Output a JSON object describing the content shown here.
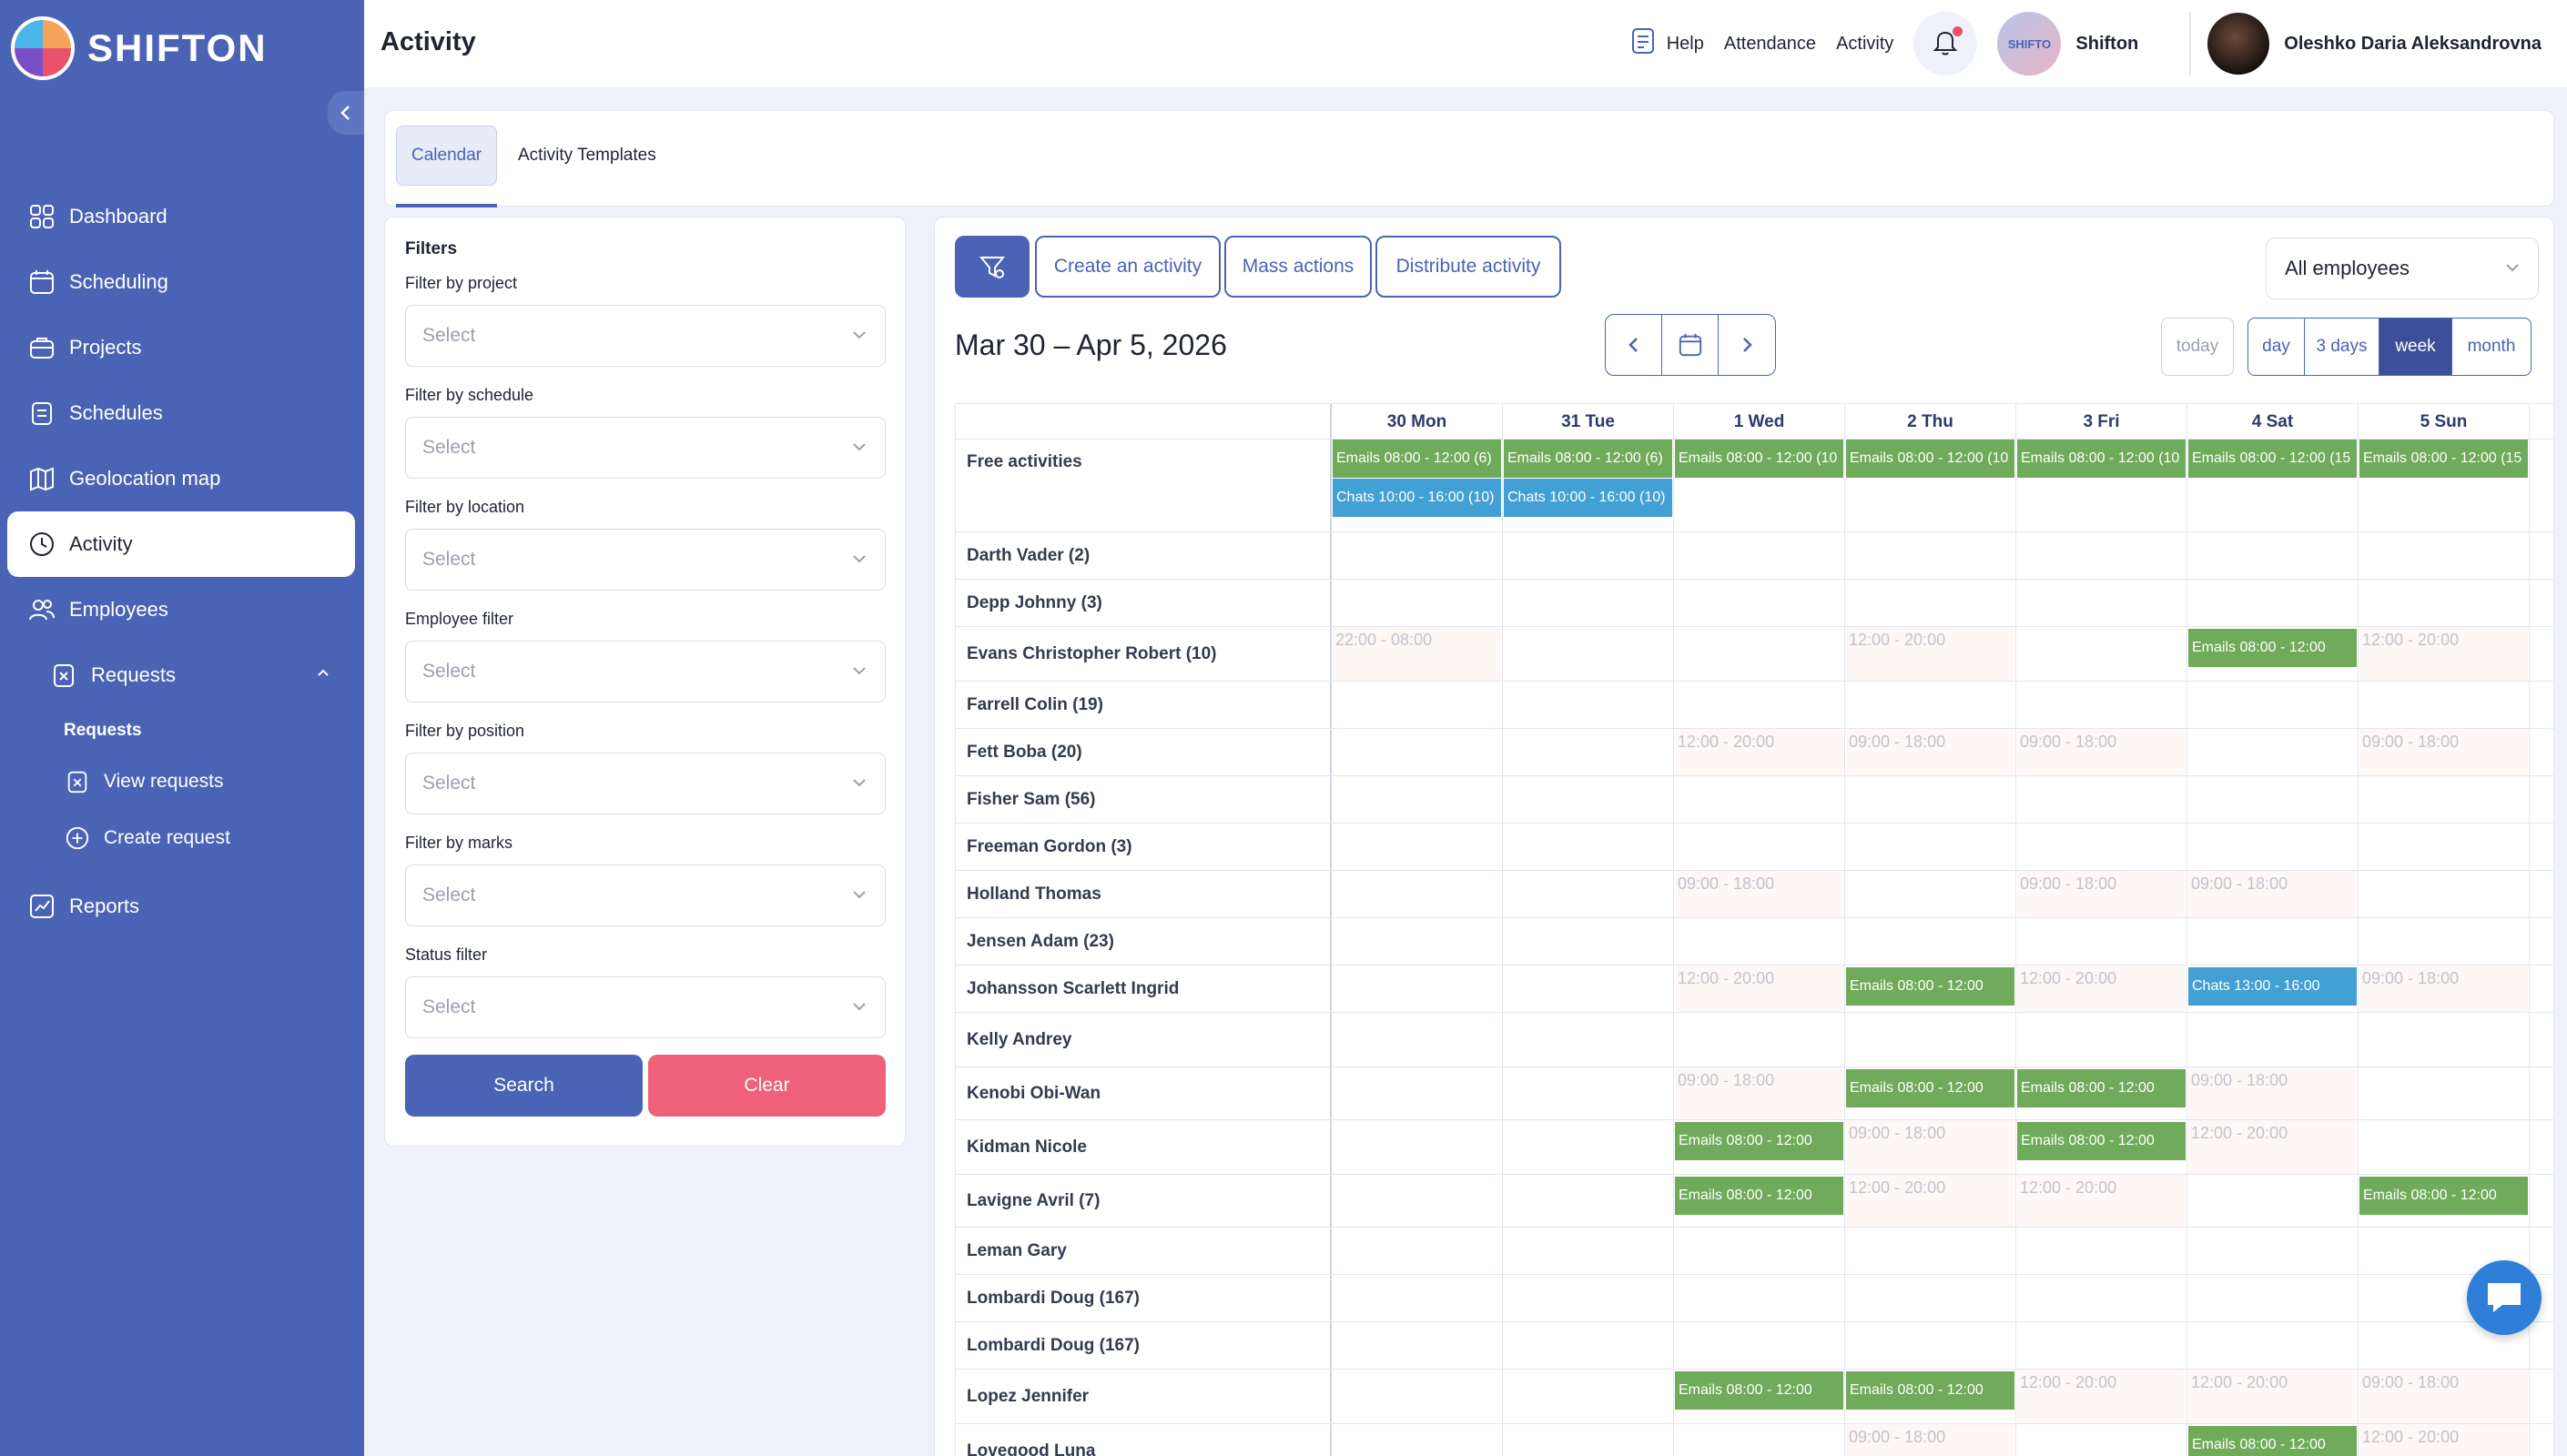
{
  "app": {
    "name": "SHIFTON",
    "page_title": "Activity"
  },
  "sidebar": {
    "items": [
      {
        "label": "Dashboard",
        "icon": "dashboard-icon"
      },
      {
        "label": "Scheduling",
        "icon": "calendar-icon"
      },
      {
        "label": "Projects",
        "icon": "briefcase-icon"
      },
      {
        "label": "Schedules",
        "icon": "clipboard-icon"
      },
      {
        "label": "Geolocation map",
        "icon": "map-icon"
      },
      {
        "label": "Activity",
        "icon": "clock-icon",
        "active": true
      },
      {
        "label": "Employees",
        "icon": "users-icon"
      }
    ],
    "requests": {
      "label": "Requests",
      "sub_heading": "Requests",
      "view": "View requests",
      "create": "Create request"
    },
    "reports": "Reports"
  },
  "topbar": {
    "help": "Help",
    "attendance": "Attendance",
    "activity": "Activity",
    "company_logo_text": "SHIFTO",
    "company": "Shifton",
    "user": "Oleshko Daria Aleksandrovna"
  },
  "tabs": {
    "calendar": "Calendar",
    "templates": "Activity Templates"
  },
  "filters": {
    "title": "Filters",
    "fields": [
      {
        "label": "Filter by project",
        "placeholder": "Select"
      },
      {
        "label": "Filter by schedule",
        "placeholder": "Select"
      },
      {
        "label": "Filter by location",
        "placeholder": "Select"
      },
      {
        "label": "Employee filter",
        "placeholder": "Select"
      },
      {
        "label": "Filter by position",
        "placeholder": "Select"
      },
      {
        "label": "Filter by marks",
        "placeholder": "Select"
      },
      {
        "label": "Status filter",
        "placeholder": "Select"
      }
    ],
    "search": "Search",
    "clear": "Clear"
  },
  "calendar": {
    "create": "Create an activity",
    "mass": "Mass actions",
    "distribute": "Distribute activity",
    "employees_select": "All employees",
    "range": "Mar 30 – Apr 5, 2026",
    "today": "today",
    "views": [
      "day",
      "3 days",
      "week",
      "month"
    ],
    "active_view": "week",
    "days": [
      "30 Mon",
      "31 Tue",
      "1 Wed",
      "2 Thu",
      "3 Fri",
      "4 Sat",
      "5 Sun"
    ],
    "rows": [
      {
        "name": "Free activities",
        "h": 102,
        "top": true,
        "cells": [
          [
            {
              "t": "Emails 08:00 - 12:00 (6)",
              "c": "green"
            },
            {
              "t": "Chats 10:00 - 16:00 (10)",
              "c": "blue"
            }
          ],
          [
            {
              "t": "Emails 08:00 - 12:00 (6)",
              "c": "green"
            },
            {
              "t": "Chats 10:00 - 16:00 (10)",
              "c": "blue"
            }
          ],
          [
            {
              "t": "Emails 08:00 - 12:00 (10",
              "c": "green"
            }
          ],
          [
            {
              "t": "Emails 08:00 - 12:00 (10",
              "c": "green"
            }
          ],
          [
            {
              "t": "Emails 08:00 - 12:00 (10",
              "c": "green"
            }
          ],
          [
            {
              "t": "Emails 08:00 - 12:00 (15",
              "c": "green"
            }
          ],
          [
            {
              "t": "Emails 08:00 - 12:00 (15",
              "c": "green"
            }
          ]
        ]
      },
      {
        "name": "Darth Vader (2)",
        "h": 52,
        "cells": [
          [],
          [],
          [],
          [],
          [],
          [],
          []
        ]
      },
      {
        "name": "Depp Johnny (3)",
        "h": 52,
        "cells": [
          [],
          [],
          [],
          [],
          [],
          [],
          []
        ]
      },
      {
        "name": "Evans Christopher Robert (10)",
        "h": 60,
        "cells": [
          [
            {
              "t": "22:00 - 08:00",
              "c": "ghost"
            }
          ],
          [],
          [],
          [
            {
              "t": "12:00 - 20:00",
              "c": "ghost"
            }
          ],
          [],
          [
            {
              "t": "Emails 08:00 - 12:00",
              "c": "green"
            }
          ],
          [
            {
              "t": "12:00 - 20:00",
              "c": "ghost"
            }
          ]
        ]
      },
      {
        "name": "Farrell Colin (19)",
        "h": 52,
        "cells": [
          [],
          [],
          [],
          [],
          [],
          [],
          []
        ]
      },
      {
        "name": "Fett Boba (20)",
        "h": 52,
        "cells": [
          [],
          [],
          [
            {
              "t": "12:00 - 20:00",
              "c": "ghost"
            }
          ],
          [
            {
              "t": "09:00 - 18:00",
              "c": "ghost"
            }
          ],
          [
            {
              "t": "09:00 - 18:00",
              "c": "ghost"
            }
          ],
          [],
          [
            {
              "t": "09:00 - 18:00",
              "c": "ghost"
            }
          ]
        ]
      },
      {
        "name": "Fisher Sam (56)",
        "h": 52,
        "cells": [
          [],
          [],
          [],
          [],
          [],
          [],
          []
        ]
      },
      {
        "name": "Freeman Gordon (3)",
        "h": 52,
        "cells": [
          [],
          [],
          [],
          [],
          [],
          [],
          []
        ]
      },
      {
        "name": "Holland Thomas",
        "h": 52,
        "cells": [
          [],
          [],
          [
            {
              "t": "09:00 - 18:00",
              "c": "ghost"
            }
          ],
          [],
          [
            {
              "t": "09:00 - 18:00",
              "c": "ghost"
            }
          ],
          [
            {
              "t": "09:00 - 18:00",
              "c": "ghost"
            }
          ],
          []
        ]
      },
      {
        "name": "Jensen Adam (23)",
        "h": 52,
        "cells": [
          [],
          [],
          [],
          [],
          [],
          [],
          []
        ]
      },
      {
        "name": "Johansson Scarlett Ingrid",
        "h": 52,
        "cells": [
          [],
          [],
          [
            {
              "t": "12:00 - 20:00",
              "c": "ghost"
            }
          ],
          [
            {
              "t": "Emails 08:00 - 12:00",
              "c": "green"
            }
          ],
          [
            {
              "t": "12:00 - 20:00",
              "c": "ghost"
            }
          ],
          [
            {
              "t": "Chats 13:00 - 16:00",
              "c": "blue"
            }
          ],
          [
            {
              "t": "09:00 - 18:00",
              "c": "ghost"
            }
          ]
        ]
      },
      {
        "name": "Kelly Andrey",
        "h": 60,
        "cells": [
          [],
          [],
          [],
          [],
          [],
          [],
          []
        ]
      },
      {
        "name": "Kenobi Obi-Wan",
        "h": 58,
        "cells": [
          [],
          [],
          [
            {
              "t": "09:00 - 18:00",
              "c": "ghost"
            }
          ],
          [
            {
              "t": "Emails 08:00 - 12:00",
              "c": "green"
            }
          ],
          [
            {
              "t": "Emails 08:00 - 12:00",
              "c": "green"
            }
          ],
          [
            {
              "t": "09:00 - 18:00",
              "c": "ghost"
            }
          ],
          []
        ]
      },
      {
        "name": "Kidman Nicole",
        "h": 60,
        "cells": [
          [],
          [],
          [
            {
              "t": "Emails 08:00 - 12:00",
              "c": "green"
            }
          ],
          [
            {
              "t": "09:00 - 18:00",
              "c": "ghost"
            }
          ],
          [
            {
              "t": "Emails 08:00 - 12:00",
              "c": "green"
            }
          ],
          [
            {
              "t": "12:00 - 20:00",
              "c": "ghost"
            }
          ],
          []
        ]
      },
      {
        "name": "Lavigne Avril (7)",
        "h": 58,
        "cells": [
          [],
          [],
          [
            {
              "t": "Emails 08:00 - 12:00",
              "c": "green"
            }
          ],
          [
            {
              "t": "12:00 - 20:00",
              "c": "ghost"
            }
          ],
          [
            {
              "t": "12:00 - 20:00",
              "c": "ghost"
            }
          ],
          [],
          [
            {
              "t": "Emails 08:00 - 12:00",
              "c": "green"
            }
          ]
        ]
      },
      {
        "name": "Leman Gary",
        "h": 52,
        "cells": [
          [],
          [],
          [],
          [],
          [],
          [],
          []
        ]
      },
      {
        "name": "Lombardi Doug (167)",
        "h": 52,
        "cells": [
          [],
          [],
          [],
          [],
          [],
          [],
          []
        ]
      },
      {
        "name": "Lombardi Doug (167)",
        "h": 52,
        "cells": [
          [],
          [],
          [],
          [],
          [],
          [],
          []
        ]
      },
      {
        "name": "Lopez Jennifer",
        "h": 60,
        "cells": [
          [],
          [],
          [
            {
              "t": "Emails 08:00 - 12:00",
              "c": "green"
            }
          ],
          [
            {
              "t": "Emails 08:00 - 12:00",
              "c": "green"
            }
          ],
          [
            {
              "t": "12:00 - 20:00",
              "c": "ghost"
            }
          ],
          [
            {
              "t": "12:00 - 20:00",
              "c": "ghost"
            }
          ],
          [
            {
              "t": "09:00 - 18:00",
              "c": "ghost"
            }
          ]
        ]
      },
      {
        "name": "Lovegood Luna",
        "h": 60,
        "cells": [
          [],
          [],
          [],
          [
            {
              "t": "09:00 - 18:00",
              "c": "ghost"
            }
          ],
          [],
          [
            {
              "t": "Emails 08:00 - 12:00",
              "c": "green"
            }
          ],
          [
            {
              "t": "12:00 - 20:00",
              "c": "ghost"
            }
          ]
        ]
      }
    ]
  }
}
